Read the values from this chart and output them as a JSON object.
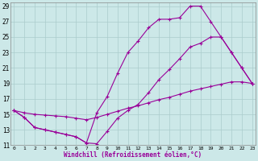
{
  "xlabel": "Windchill (Refroidissement éolien,°C)",
  "line_color": "#990099",
  "bg_color": "#cce8e8",
  "grid_color": "#aacccc",
  "xlim_min": -0.3,
  "xlim_max": 23.3,
  "ylim_min": 11,
  "ylim_max": 29.5,
  "yticks": [
    11,
    13,
    15,
    17,
    19,
    21,
    23,
    25,
    27,
    29
  ],
  "xticks": [
    0,
    1,
    2,
    3,
    4,
    5,
    6,
    7,
    8,
    9,
    10,
    11,
    12,
    13,
    14,
    15,
    16,
    17,
    18,
    19,
    20,
    21,
    22,
    23
  ],
  "line1_x": [
    0,
    1,
    2,
    3,
    4,
    5,
    6,
    7,
    8,
    9,
    10,
    11,
    12,
    13,
    14,
    15,
    16,
    17,
    18,
    19,
    20,
    21,
    22,
    23
  ],
  "line1_y": [
    15.5,
    14.6,
    13.3,
    13.0,
    12.7,
    12.4,
    12.1,
    11.3,
    15.2,
    17.3,
    20.3,
    23.0,
    24.5,
    26.2,
    27.3,
    27.3,
    27.5,
    29.0,
    29.0,
    27.0,
    25.0,
    23.0,
    21.0,
    19.0
  ],
  "line2_x": [
    0,
    1,
    2,
    3,
    4,
    5,
    6,
    7,
    8,
    9,
    10,
    11,
    12,
    13,
    14,
    15,
    16,
    17,
    18,
    19,
    20,
    21,
    22,
    23
  ],
  "line2_y": [
    15.5,
    14.6,
    13.3,
    13.0,
    12.7,
    12.4,
    12.1,
    11.3,
    11.2,
    12.8,
    14.5,
    15.5,
    16.3,
    17.8,
    19.5,
    20.8,
    22.2,
    23.7,
    24.2,
    25.0,
    25.0,
    23.0,
    21.0,
    19.0
  ],
  "line3_x": [
    0,
    1,
    2,
    3,
    4,
    5,
    6,
    7,
    8,
    9,
    10,
    11,
    12,
    13,
    14,
    15,
    16,
    17,
    18,
    19,
    20,
    21,
    22,
    23
  ],
  "line3_y": [
    15.5,
    15.2,
    15.0,
    14.9,
    14.8,
    14.7,
    14.5,
    14.3,
    14.6,
    15.0,
    15.4,
    15.8,
    16.1,
    16.5,
    16.9,
    17.2,
    17.6,
    18.0,
    18.3,
    18.6,
    18.9,
    19.2,
    19.2,
    19.0
  ]
}
